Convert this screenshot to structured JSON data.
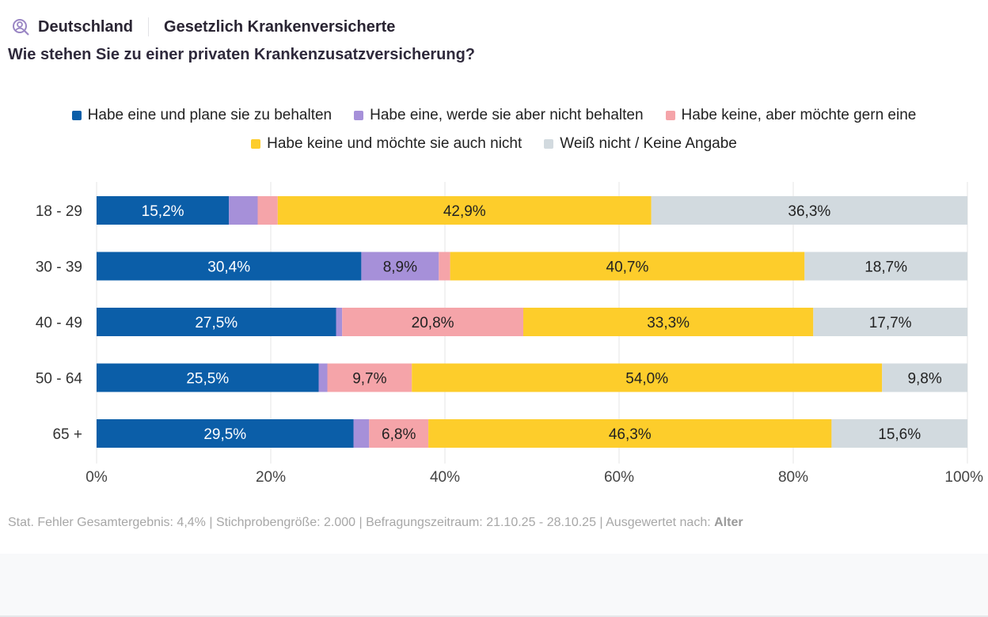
{
  "header": {
    "region": "Deutschland",
    "segment": "Gesetzlich Krankenversicherte",
    "question": "Wie stehen Sie zu einer privaten Krankenzusatzversicherung?",
    "icon": "user-search-icon"
  },
  "chart_data": {
    "type": "bar",
    "orientation": "horizontal",
    "stacked": true,
    "categories": [
      "18 - 29",
      "30 - 39",
      "40 - 49",
      "50 - 64",
      "65 +"
    ],
    "series": [
      {
        "name": "Habe eine und plane sie zu behalten",
        "color": "#0b5ea8",
        "values": [
          15.2,
          30.4,
          27.5,
          25.5,
          29.5
        ]
      },
      {
        "name": "Habe eine, werde sie aber nicht behalten",
        "color": "#a690d9",
        "values": [
          3.3,
          8.9,
          0.7,
          1.0,
          1.8
        ]
      },
      {
        "name": "Habe keine, aber möchte gern eine",
        "color": "#f5a4a9",
        "values": [
          2.3,
          1.3,
          20.8,
          9.7,
          6.8
        ]
      },
      {
        "name": "Habe keine und möchte sie auch nicht",
        "color": "#fdcd2b",
        "values": [
          42.9,
          40.7,
          33.3,
          54.0,
          46.3
        ]
      },
      {
        "name": "Weiß nicht / Keine Angabe",
        "color": "#d2dadf",
        "values": [
          36.3,
          18.7,
          17.7,
          9.8,
          15.6
        ]
      }
    ],
    "data_labels": [
      [
        "15,2%",
        "",
        "",
        "42,9%",
        "36,3%"
      ],
      [
        "30,4%",
        "8,9%",
        "",
        "40,7%",
        "18,7%"
      ],
      [
        "27,5%",
        "",
        "20,8%",
        "33,3%",
        "17,7%"
      ],
      [
        "25,5%",
        "",
        "9,7%",
        "54,0%",
        "9,8%"
      ],
      [
        "29,5%",
        "",
        "6,8%",
        "46,3%",
        "15,6%"
      ]
    ],
    "xlim": [
      0,
      100
    ],
    "x_ticks": [
      "0%",
      "20%",
      "40%",
      "60%",
      "80%",
      "100%"
    ],
    "grid": true,
    "legend_position": "top"
  },
  "footer": {
    "text": "Stat. Fehler Gesamtergebnis: 4,4% | Stichprobengröße: 2.000 | Befragungszeitraum: 21.10.25 - 28.10.25 | Ausgewertet nach: ",
    "group_by": "Alter"
  }
}
